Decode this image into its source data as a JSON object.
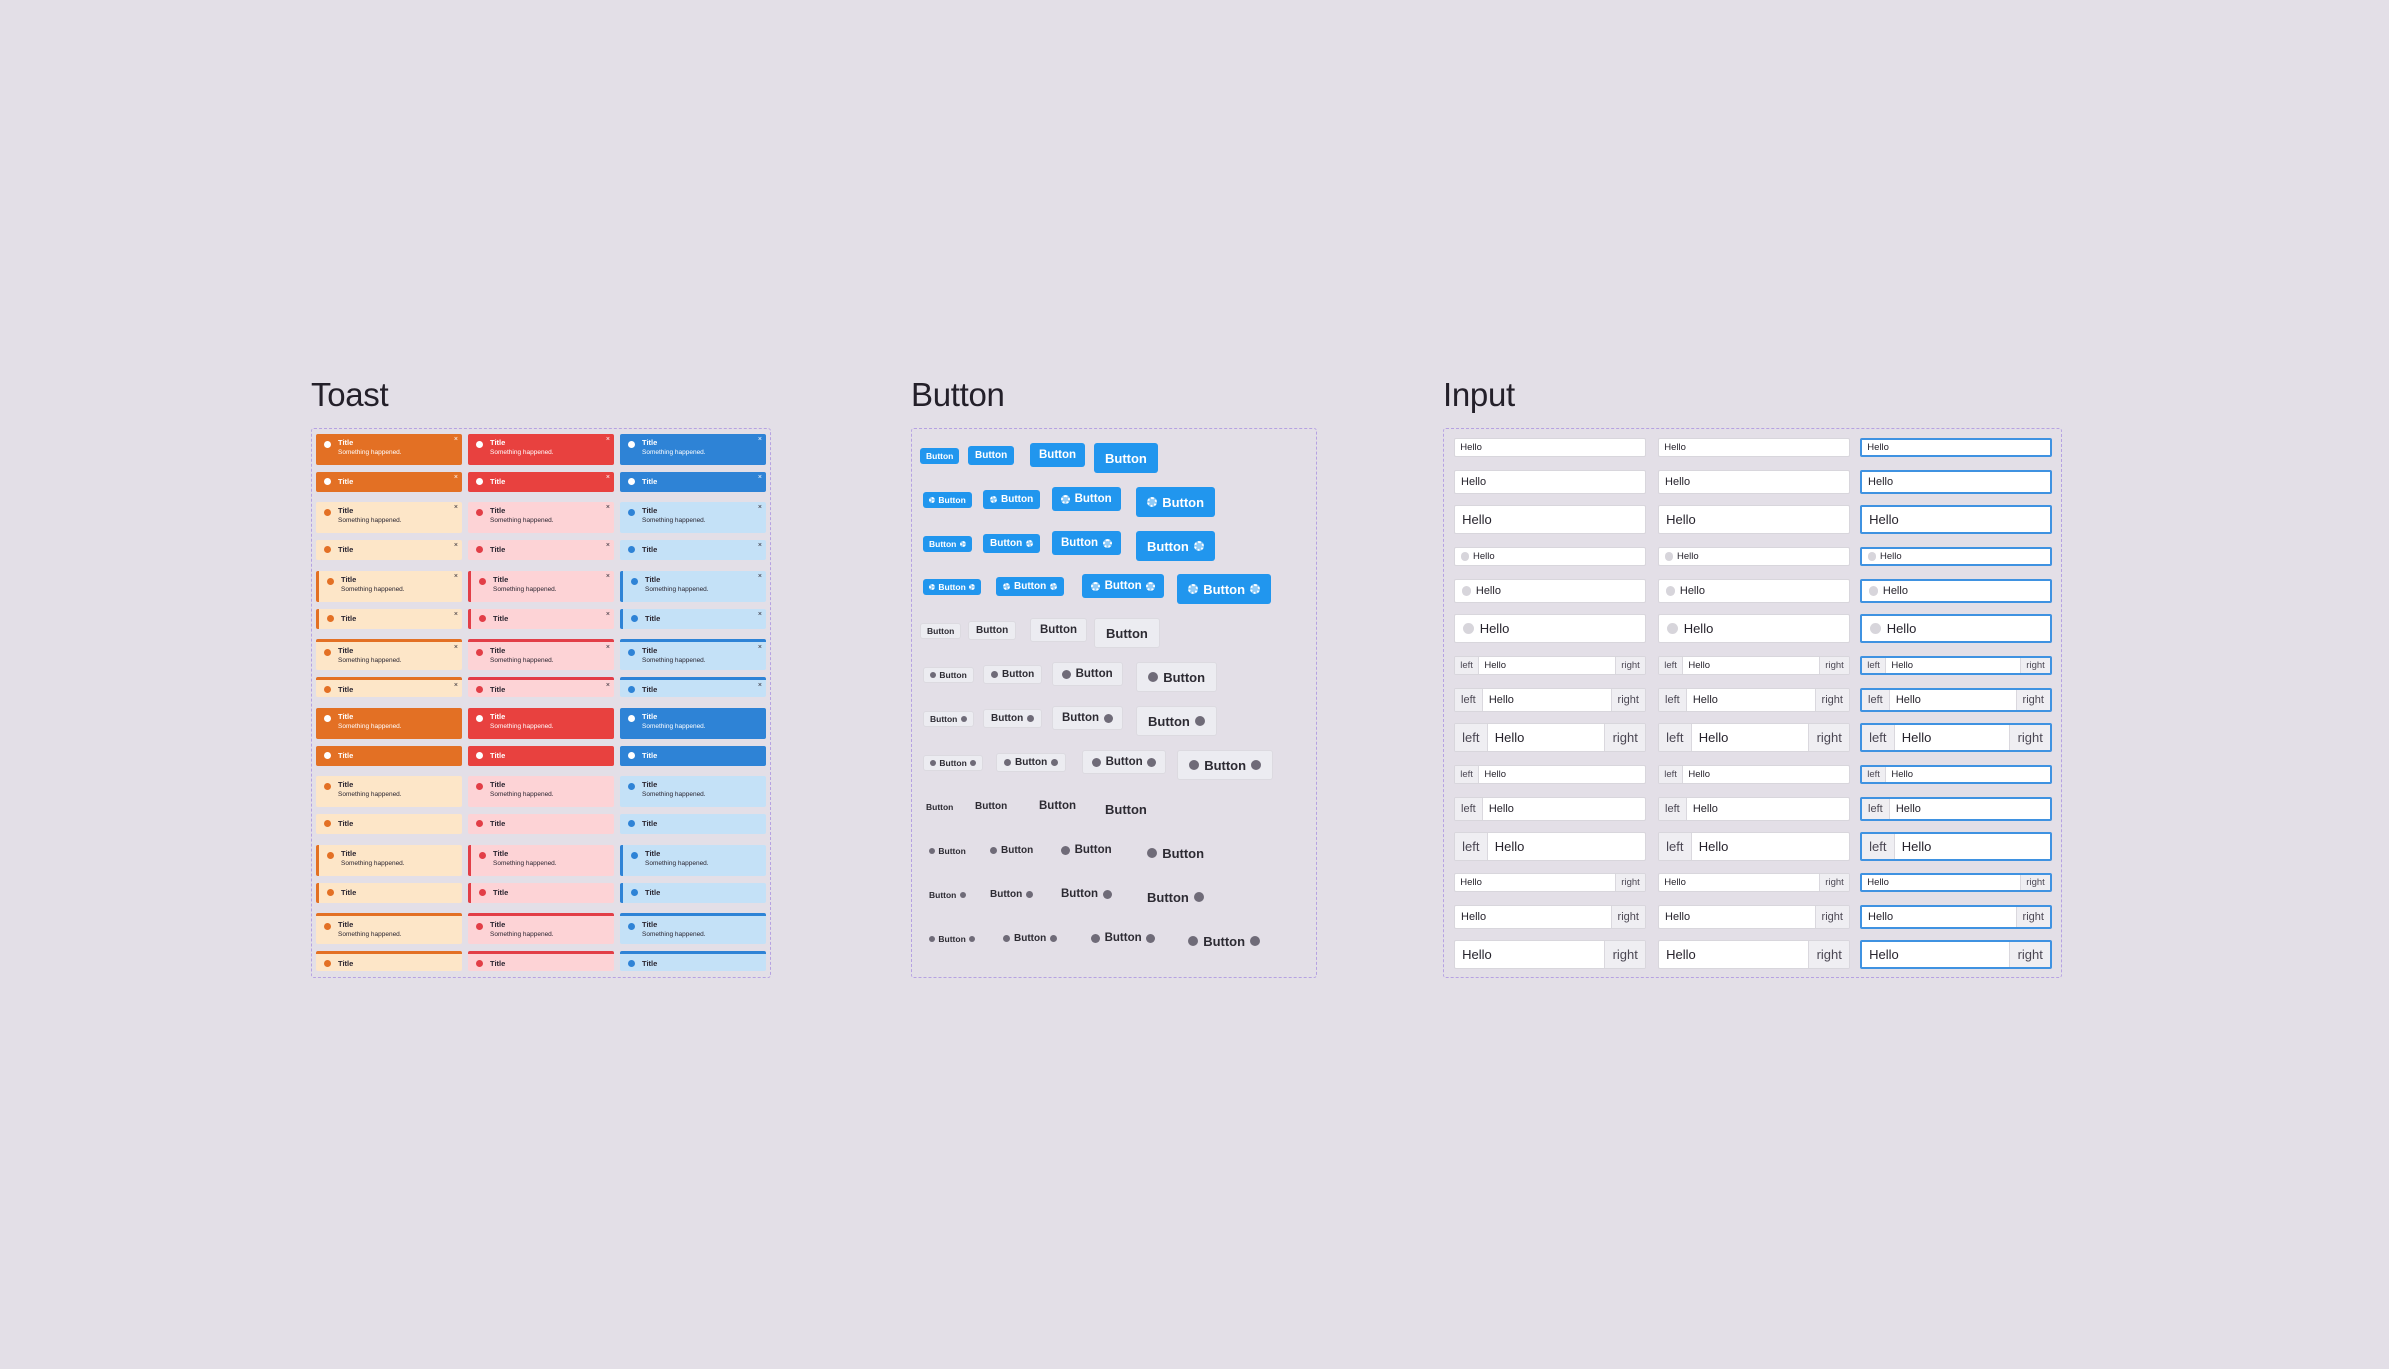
{
  "sections": {
    "toast": {
      "title": "Toast"
    },
    "button": {
      "title": "Button"
    },
    "input": {
      "title": "Input"
    }
  },
  "toast": {
    "title": "Title",
    "description": "Something happened.",
    "close_icon": "close-icon",
    "status_icon": "status-dot-icon",
    "columns": [
      "warning",
      "danger",
      "info"
    ],
    "colors": {
      "warning": {
        "solid": "#e37024",
        "soft": "#fde6c8",
        "accent": "#e37024"
      },
      "danger": {
        "solid": "#e8413f",
        "soft": "#fdd3d6",
        "accent": "#e23e47"
      },
      "info": {
        "solid": "#2e83d6",
        "soft": "#c4e1f7",
        "accent": "#2e83d6"
      }
    },
    "rows": [
      {
        "variant": "solid",
        "desc": true,
        "close": true
      },
      {
        "variant": "solid",
        "desc": false,
        "close": true
      },
      {
        "variant": "soft",
        "desc": true,
        "close": true
      },
      {
        "variant": "soft",
        "desc": false,
        "close": true
      },
      {
        "variant": "left-accent",
        "desc": true,
        "close": true
      },
      {
        "variant": "left-accent",
        "desc": false,
        "close": true
      },
      {
        "variant": "top-accent",
        "desc": true,
        "close": true
      },
      {
        "variant": "top-accent",
        "desc": false,
        "close": true
      },
      {
        "variant": "solid",
        "desc": true,
        "close": false
      },
      {
        "variant": "solid",
        "desc": false,
        "close": false
      },
      {
        "variant": "soft",
        "desc": true,
        "close": false
      },
      {
        "variant": "soft",
        "desc": false,
        "close": false
      },
      {
        "variant": "left-accent",
        "desc": true,
        "close": false
      },
      {
        "variant": "left-accent",
        "desc": false,
        "close": false
      },
      {
        "variant": "top-accent",
        "desc": true,
        "close": false
      },
      {
        "variant": "top-accent",
        "desc": false,
        "close": false
      }
    ]
  },
  "buttons": {
    "label": "Button",
    "icon": "gear-icon",
    "colors": {
      "solid": "#2196ee",
      "light": "#ececf1"
    },
    "sizes": [
      "xs",
      "sm",
      "md",
      "lg"
    ],
    "rows": [
      {
        "variant": "solid",
        "icons": "none"
      },
      {
        "variant": "solid",
        "icons": "left"
      },
      {
        "variant": "solid",
        "icons": "right"
      },
      {
        "variant": "solid",
        "icons": "both"
      },
      {
        "variant": "light",
        "icons": "none"
      },
      {
        "variant": "light",
        "icons": "left"
      },
      {
        "variant": "light",
        "icons": "right"
      },
      {
        "variant": "light",
        "icons": "both"
      },
      {
        "variant": "ghost",
        "icons": "none"
      },
      {
        "variant": "ghost",
        "icons": "left"
      },
      {
        "variant": "ghost",
        "icons": "right"
      },
      {
        "variant": "ghost",
        "icons": "both"
      }
    ]
  },
  "inputs": {
    "value": "Hello",
    "left_addon": "left",
    "right_addon": "right",
    "lead_icon": "circle-icon",
    "focus_color": "#3f92e1",
    "columns": [
      "default",
      "default",
      "focused"
    ],
    "rows": [
      {
        "type": "plain",
        "size": "sm"
      },
      {
        "type": "plain",
        "size": "md"
      },
      {
        "type": "plain",
        "size": "lg"
      },
      {
        "type": "icon",
        "size": "sm"
      },
      {
        "type": "icon",
        "size": "md"
      },
      {
        "type": "icon",
        "size": "lg"
      },
      {
        "type": "both",
        "size": "sm"
      },
      {
        "type": "both",
        "size": "md"
      },
      {
        "type": "both",
        "size": "lg"
      },
      {
        "type": "left",
        "size": "sm"
      },
      {
        "type": "left",
        "size": "md"
      },
      {
        "type": "left",
        "size": "lg"
      },
      {
        "type": "right",
        "size": "sm"
      },
      {
        "type": "right",
        "size": "md"
      },
      {
        "type": "right",
        "size": "lg"
      }
    ]
  }
}
